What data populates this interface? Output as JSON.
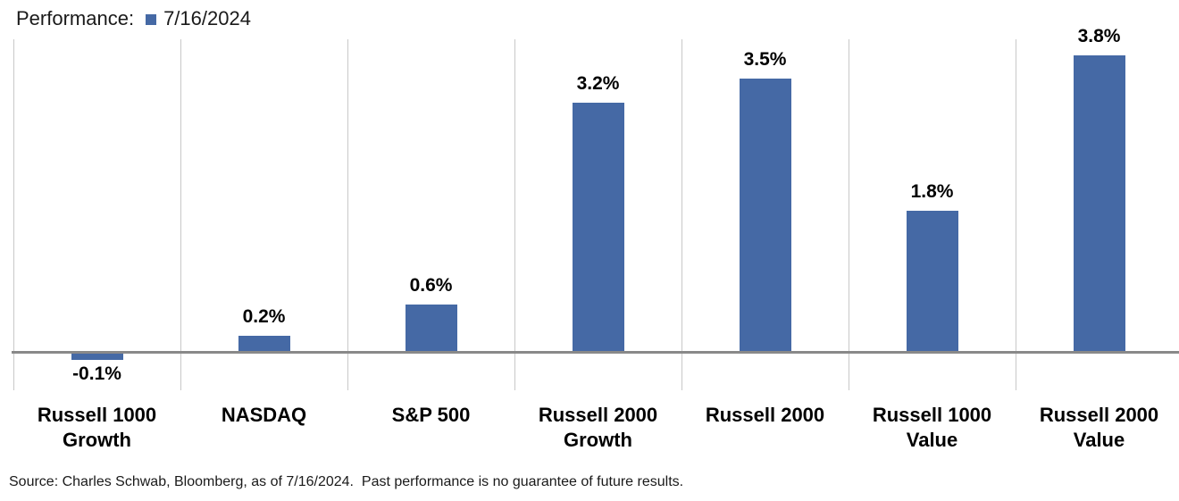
{
  "header": {
    "title": "Performance:",
    "legend_label": "7/16/2024"
  },
  "footer": {
    "source": "Source: Charles Schwab, Bloomberg, as of 7/16/2024.  Past performance is no guarantee of future results."
  },
  "chart_data": {
    "type": "bar",
    "title": "Performance:",
    "series": [
      {
        "name": "7/16/2024",
        "values": [
          -0.1,
          0.2,
          0.6,
          3.2,
          3.5,
          1.8,
          3.8
        ]
      }
    ],
    "categories": [
      "Russell 1000 Growth",
      "NASDAQ",
      "S&P 500",
      "Russell 2000 Growth",
      "Russell 2000",
      "Russell 1000 Value",
      "Russell 2000 Value"
    ],
    "category_label_lines": [
      [
        "Russell 1000",
        "Growth"
      ],
      [
        "NASDAQ"
      ],
      [
        "S&P 500"
      ],
      [
        "Russell 2000",
        "Growth"
      ],
      [
        "Russell 2000"
      ],
      [
        "Russell 1000",
        "Value"
      ],
      [
        "Russell 2000",
        "Value"
      ]
    ],
    "value_labels": [
      "-0.1%",
      "0.2%",
      "0.6%",
      "3.2%",
      "3.5%",
      "1.8%",
      "3.8%"
    ],
    "xlabel": "",
    "ylabel": "",
    "ylim": [
      -0.5,
      4.05
    ],
    "y_axis_visible": false,
    "grid": "vertical-category-separators",
    "legend_position": "top-left-inline-with-title",
    "bar_color": "#4569A5",
    "axis_line_color": "#898989",
    "gridline_color": "#c8c8c8",
    "label_color": "#000000",
    "background_color": "#ffffff"
  }
}
